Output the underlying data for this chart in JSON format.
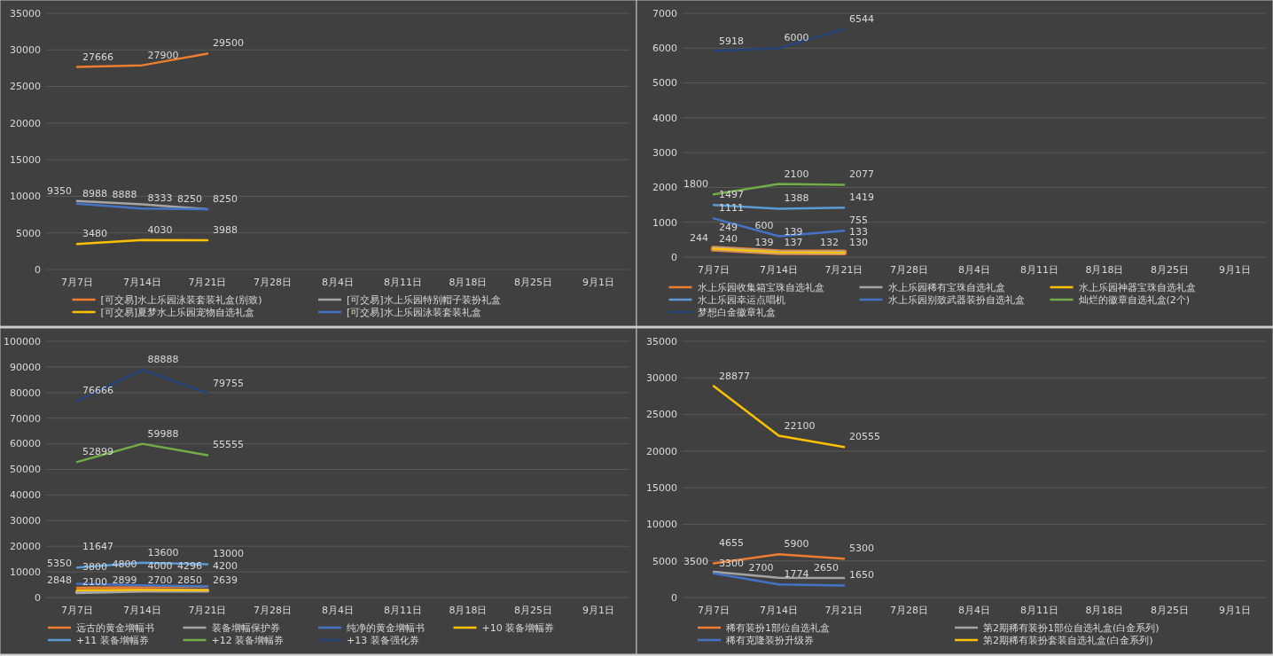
{
  "chart_data": [
    {
      "type": "line",
      "categories": [
        "7月7日",
        "7月14日",
        "7月21日",
        "7月28日",
        "8月4日",
        "8月11日",
        "8月18日",
        "8月25日",
        "9月1日"
      ],
      "ylim": [
        0,
        35000
      ],
      "yticks": [
        0,
        5000,
        10000,
        15000,
        20000,
        25000,
        30000,
        35000
      ],
      "grid": "y",
      "legend": "bottom",
      "data_labels": true,
      "marker": "none",
      "series": [
        {
          "name": "[可交易]水上乐园泳装套装礼盒(别致)",
          "color": "#ed7d31",
          "values": [
            27666,
            27900,
            29500,
            null,
            null,
            null,
            null,
            null,
            null
          ]
        },
        {
          "name": "[可交易]水上乐园特别帽子装扮礼盒",
          "color": "#a5a5a5",
          "values": [
            9350,
            8888,
            8250,
            null,
            null,
            null,
            null,
            null,
            null
          ]
        },
        {
          "name": "[可交易]夏梦水上乐园宠物自选礼盒",
          "color": "#ffc000",
          "values": [
            3480,
            4030,
            3988,
            null,
            null,
            null,
            null,
            null,
            null
          ]
        },
        {
          "name": "[可交易]水上乐园泳装套装礼盒",
          "color": "#4472c4",
          "values": [
            8988,
            8333,
            8250,
            null,
            null,
            null,
            null,
            null,
            null
          ]
        }
      ]
    },
    {
      "type": "line",
      "categories": [
        "7月7日",
        "7月14日",
        "7月21日",
        "7月28日",
        "8月4日",
        "8月11日",
        "8月18日",
        "8月25日",
        "9月1日"
      ],
      "ylim": [
        0,
        7000
      ],
      "yticks": [
        0,
        1000,
        2000,
        3000,
        4000,
        5000,
        6000,
        7000
      ],
      "grid": "y",
      "legend": "bottom",
      "data_labels": true,
      "marker": "none",
      "series": [
        {
          "name": "水上乐园收集箱宝珠自选礼盒",
          "color": "#ed7d31",
          "values": [
            240,
            137,
            133,
            null,
            null,
            null,
            null,
            null,
            null
          ]
        },
        {
          "name": "水上乐园稀有宝珠自选礼盒",
          "color": "#a5a5a5",
          "values": [
            249,
            139,
            132,
            null,
            null,
            null,
            null,
            null,
            null
          ]
        },
        {
          "name": "水上乐园神器宝珠自选礼盒",
          "color": "#ffc000",
          "values": [
            244,
            139,
            130,
            null,
            null,
            null,
            null,
            null,
            null
          ]
        },
        {
          "name": "水上乐园幸运点唱机",
          "color": "#5b9bd5",
          "values": [
            1497,
            1388,
            1419,
            null,
            null,
            null,
            null,
            null,
            null
          ]
        },
        {
          "name": "水上乐园别致武器装扮自选礼盒",
          "color": "#4472c4",
          "values": [
            1111,
            600,
            755,
            null,
            null,
            null,
            null,
            null,
            null
          ]
        },
        {
          "name": "灿烂的徽章自选礼盒(2个)",
          "color": "#70ad47",
          "values": [
            1800,
            2100,
            2077,
            null,
            null,
            null,
            null,
            null,
            null
          ]
        },
        {
          "name": "梦想白金徽章礼盒",
          "color": "#264478",
          "values": [
            5918,
            6000,
            6544,
            null,
            null,
            null,
            null,
            null,
            null
          ]
        }
      ]
    },
    {
      "type": "line",
      "categories": [
        "7月7日",
        "7月14日",
        "7月21日",
        "7月28日",
        "8月4日",
        "8月11日",
        "8月18日",
        "8月25日",
        "9月1日"
      ],
      "ylim": [
        0,
        100000
      ],
      "yticks": [
        0,
        10000,
        20000,
        30000,
        40000,
        50000,
        60000,
        70000,
        80000,
        90000,
        100000
      ],
      "grid": "y",
      "legend": "bottom",
      "data_labels": true,
      "marker": "none",
      "series": [
        {
          "name": "远古的黄金增幅书",
          "color": "#ed7d31",
          "values": [
            3800,
            4000,
            4200,
            null,
            null,
            null,
            null,
            null,
            null
          ]
        },
        {
          "name": "装备增幅保护券",
          "color": "#a5a5a5",
          "values": [
            2100,
            2700,
            2639,
            null,
            null,
            null,
            null,
            null,
            null
          ]
        },
        {
          "name": "纯净的黄金增幅书",
          "color": "#4472c4",
          "values": [
            5350,
            4800,
            4296,
            null,
            null,
            null,
            null,
            null,
            null
          ]
        },
        {
          "name": "+10 装备增幅券",
          "color": "#ffc000",
          "values": [
            2848,
            2899,
            2850,
            null,
            null,
            null,
            null,
            null,
            null
          ]
        },
        {
          "name": "+11 装备增幅券",
          "color": "#5b9bd5",
          "values": [
            11647,
            13600,
            13000,
            null,
            null,
            null,
            null,
            null,
            null
          ]
        },
        {
          "name": "+12 装备增幅券",
          "color": "#70ad47",
          "values": [
            52899,
            59988,
            55555,
            null,
            null,
            null,
            null,
            null,
            null
          ]
        },
        {
          "name": "+13 装备强化券",
          "color": "#264478",
          "values": [
            76666,
            88888,
            79755,
            null,
            null,
            null,
            null,
            null,
            null
          ]
        }
      ]
    },
    {
      "type": "line",
      "categories": [
        "7月7日",
        "7月14日",
        "7月21日",
        "7月28日",
        "8月4日",
        "8月11日",
        "8月18日",
        "8月25日",
        "9月1日"
      ],
      "ylim": [
        0,
        35000
      ],
      "yticks": [
        0,
        5000,
        10000,
        15000,
        20000,
        25000,
        30000,
        35000
      ],
      "grid": "y",
      "legend": "bottom",
      "data_labels": true,
      "marker": "none",
      "series": [
        {
          "name": "稀有装扮1部位自选礼盒",
          "color": "#ed7d31",
          "values": [
            4655,
            5900,
            5300,
            null,
            null,
            null,
            null,
            null,
            null
          ]
        },
        {
          "name": "第2期稀有装扮1部位自选礼盒(白金系列)",
          "color": "#a5a5a5",
          "values": [
            3500,
            2700,
            2650,
            null,
            null,
            null,
            null,
            null,
            null
          ]
        },
        {
          "name": "稀有克隆装扮升级券",
          "color": "#4472c4",
          "values": [
            3300,
            1774,
            1650,
            null,
            null,
            null,
            null,
            null,
            null
          ]
        },
        {
          "name": "第2期稀有装扮套装自选礼盒(白金系列)",
          "color": "#ffc000",
          "values": [
            28877,
            22100,
            20555,
            null,
            null,
            null,
            null,
            null,
            null
          ]
        }
      ]
    }
  ]
}
